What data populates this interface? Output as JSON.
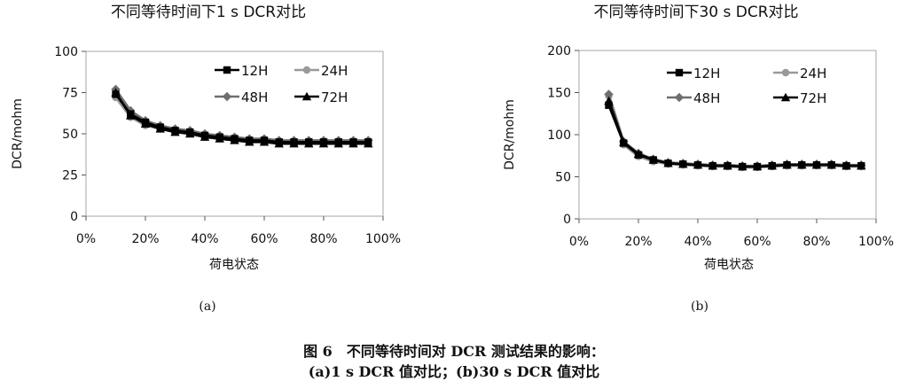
{
  "chart_data": [
    {
      "type": "line",
      "title": "不同等待时间下1 s DCR对比",
      "xlabel": "荷电状态",
      "ylabel": "DCR/mohm",
      "xlim": [
        0,
        100
      ],
      "ylim": [
        0,
        100
      ],
      "xticks": [
        "0%",
        "20%",
        "40%",
        "60%",
        "80%",
        "100%"
      ],
      "yticks": [
        "0",
        "25",
        "50",
        "75",
        "100"
      ],
      "x": [
        10,
        15,
        20,
        25,
        30,
        35,
        40,
        45,
        50,
        55,
        60,
        65,
        70,
        75,
        80,
        85,
        90,
        95
      ],
      "legend_position": "top-right",
      "grid": false,
      "series": [
        {
          "name": "12H",
          "marker": "square",
          "color": "#000000",
          "values": [
            74,
            62,
            57,
            54,
            52,
            51,
            49,
            48,
            47,
            46,
            46,
            45,
            45,
            45,
            45,
            45,
            45,
            45
          ]
        },
        {
          "name": "24H",
          "marker": "circle",
          "color": "#9a9a9a",
          "values": [
            72,
            60,
            55,
            53,
            51,
            50,
            48,
            47,
            46,
            46,
            45,
            45,
            45,
            45,
            45,
            45,
            45,
            45
          ]
        },
        {
          "name": "48H",
          "marker": "diamond",
          "color": "#6e6e6e",
          "values": [
            77,
            64,
            58,
            55,
            53,
            52,
            50,
            49,
            48,
            47,
            47,
            46,
            46,
            46,
            46,
            46,
            46,
            46
          ]
        },
        {
          "name": "72H",
          "marker": "triangle",
          "color": "#000000",
          "values": [
            75,
            61,
            56,
            53,
            51,
            50,
            48,
            47,
            46,
            45,
            45,
            44,
            44,
            44,
            44,
            44,
            44,
            44
          ]
        }
      ]
    },
    {
      "type": "line",
      "title": "不同等待时间下30 s DCR对比",
      "xlabel": "荷电状态",
      "ylabel": "DCR/mohm",
      "xlim": [
        0,
        100
      ],
      "ylim": [
        0,
        200
      ],
      "xticks": [
        "0%",
        "20%",
        "40%",
        "60%",
        "80%",
        "100%"
      ],
      "yticks": [
        "0",
        "50",
        "100",
        "150",
        "200"
      ],
      "x": [
        10,
        15,
        20,
        25,
        30,
        35,
        40,
        45,
        50,
        55,
        60,
        65,
        70,
        75,
        80,
        85,
        90,
        95
      ],
      "legend_position": "top-right",
      "grid": false,
      "series": [
        {
          "name": "12H",
          "marker": "square",
          "color": "#000000",
          "values": [
            135,
            90,
            76,
            70,
            66,
            65,
            64,
            63,
            63,
            62,
            62,
            63,
            64,
            64,
            64,
            64,
            63,
            63
          ]
        },
        {
          "name": "24H",
          "marker": "circle",
          "color": "#9a9a9a",
          "values": [
            146,
            88,
            74,
            68,
            65,
            64,
            63,
            62,
            62,
            61,
            61,
            62,
            63,
            63,
            63,
            63,
            62,
            62
          ]
        },
        {
          "name": "48H",
          "marker": "diamond",
          "color": "#6e6e6e",
          "values": [
            148,
            92,
            78,
            71,
            67,
            66,
            65,
            64,
            64,
            63,
            63,
            64,
            65,
            65,
            65,
            65,
            64,
            64
          ]
        },
        {
          "name": "72H",
          "marker": "triangle",
          "color": "#000000",
          "values": [
            140,
            91,
            77,
            70,
            66,
            65,
            64,
            63,
            63,
            62,
            62,
            63,
            64,
            64,
            64,
            64,
            63,
            63
          ]
        }
      ]
    }
  ],
  "labels": {
    "sub_a": "(a)",
    "sub_b": "(b)",
    "caption_line1": "图 6　不同等待时间对 DCR 测试结果的影响：",
    "caption_line2": "(a)1 s DCR 值对比；(b)30 s DCR 值对比"
  }
}
